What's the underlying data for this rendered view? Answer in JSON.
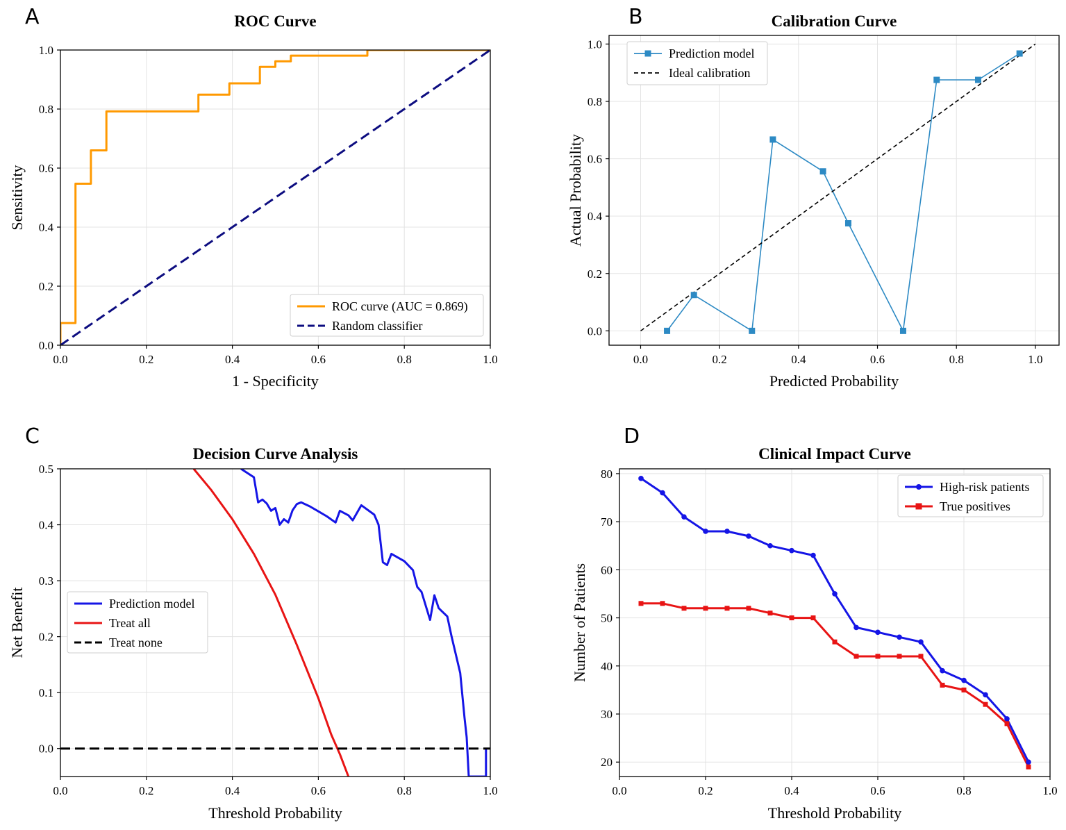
{
  "chart_data": [
    {
      "id": "A",
      "panel_label": "A",
      "type": "line",
      "title": "ROC Curve",
      "xlabel": "1 - Specificity",
      "ylabel": "Sensitivity",
      "xlim": [
        0,
        1
      ],
      "ylim": [
        0,
        1
      ],
      "xticks": [
        0,
        0.2,
        0.4,
        0.6,
        0.8,
        1.0
      ],
      "yticks": [
        0,
        0.2,
        0.4,
        0.6,
        0.8,
        1.0
      ],
      "tick_decimals": 1,
      "grid": true,
      "legend_position": "lower-right",
      "series": [
        {
          "name": "ROC curve (AUC = 0.869)",
          "color": "#ff9900",
          "dash": "solid",
          "marker": "none",
          "x": [
            0,
            0,
            0.035,
            0.035,
            0.071,
            0.071,
            0.107,
            0.107,
            0.321,
            0.321,
            0.393,
            0.393,
            0.464,
            0.464,
            0.5,
            0.5,
            0.536,
            0.536,
            0.714,
            0.714,
            1.0
          ],
          "y": [
            0,
            0.075,
            0.075,
            0.547,
            0.547,
            0.66,
            0.66,
            0.792,
            0.792,
            0.849,
            0.849,
            0.887,
            0.887,
            0.943,
            0.943,
            0.962,
            0.962,
            0.981,
            0.981,
            1.0,
            1.0
          ]
        },
        {
          "name": "Random classifier",
          "color": "#0d0d80",
          "dash": "dashed",
          "marker": "none",
          "x": [
            0,
            1
          ],
          "y": [
            0,
            1
          ]
        }
      ]
    },
    {
      "id": "B",
      "panel_label": "B",
      "type": "line",
      "title": "Calibration Curve",
      "xlabel": "Predicted Probability",
      "ylabel": "Actual Probability",
      "xlim": [
        -0.08,
        1.06
      ],
      "ylim": [
        -0.05,
        1.03
      ],
      "xticks": [
        0,
        0.2,
        0.4,
        0.6,
        0.8,
        1.0
      ],
      "yticks": [
        0,
        0.2,
        0.4,
        0.6,
        0.8,
        1.0
      ],
      "tick_decimals": 1,
      "grid": true,
      "legend_position": "upper-left",
      "series": [
        {
          "name": "Prediction model",
          "color": "#2d8ac4",
          "dash": "solid",
          "marker": "square",
          "x": [
            0.067,
            0.135,
            0.282,
            0.335,
            0.462,
            0.526,
            0.665,
            0.75,
            0.855,
            0.96
          ],
          "y": [
            0.0,
            0.125,
            0.0,
            0.667,
            0.556,
            0.375,
            0.0,
            0.875,
            0.875,
            0.967
          ]
        },
        {
          "name": "Ideal calibration",
          "color": "#000000",
          "dash": "dashed-fine",
          "marker": "none",
          "x": [
            0,
            1
          ],
          "y": [
            0,
            1
          ]
        }
      ]
    },
    {
      "id": "C",
      "panel_label": "C",
      "type": "line",
      "title": "Decision Curve Analysis",
      "xlabel": "Threshold Probability",
      "ylabel": "Net Benefit",
      "xlim": [
        0,
        1
      ],
      "ylim": [
        -0.05,
        0.5
      ],
      "xticks": [
        0,
        0.2,
        0.4,
        0.6,
        0.8,
        1.0
      ],
      "yticks": [
        0,
        0.1,
        0.2,
        0.3,
        0.4,
        0.5
      ],
      "tick_decimals": 1,
      "grid": true,
      "legend_position": "center-left",
      "series": [
        {
          "name": "Prediction model",
          "color": "#1515e6",
          "dash": "solid",
          "marker": "none",
          "x": [
            0.42,
            0.45,
            0.46,
            0.47,
            0.48,
            0.49,
            0.5,
            0.51,
            0.52,
            0.53,
            0.54,
            0.55,
            0.56,
            0.58,
            0.6,
            0.62,
            0.64,
            0.65,
            0.67,
            0.68,
            0.7,
            0.73,
            0.74,
            0.75,
            0.76,
            0.77,
            0.8,
            0.82,
            0.83,
            0.84,
            0.86,
            0.87,
            0.88,
            0.9,
            0.91,
            0.93,
            0.94,
            0.945,
            0.95,
            0.955,
            0.99,
            0.99
          ],
          "y": [
            0.5,
            0.485,
            0.44,
            0.445,
            0.438,
            0.425,
            0.43,
            0.4,
            0.41,
            0.404,
            0.426,
            0.437,
            0.44,
            0.433,
            0.424,
            0.415,
            0.404,
            0.425,
            0.417,
            0.408,
            0.435,
            0.418,
            0.4,
            0.333,
            0.328,
            0.348,
            0.335,
            0.319,
            0.289,
            0.28,
            0.23,
            0.274,
            0.251,
            0.236,
            0.2,
            0.135,
            0.055,
            0.02,
            -0.05,
            -0.05,
            -0.05,
            0.0
          ]
        },
        {
          "name": "Treat all",
          "color": "#e81414",
          "dash": "solid",
          "marker": "none",
          "x": [
            0.31,
            0.35,
            0.4,
            0.45,
            0.5,
            0.55,
            0.6,
            0.63,
            0.65,
            0.67
          ],
          "y": [
            0.5,
            0.463,
            0.41,
            0.348,
            0.275,
            0.185,
            0.09,
            0.025,
            -0.01,
            -0.05
          ]
        },
        {
          "name": "Treat none",
          "color": "#000000",
          "dash": "dashed",
          "marker": "none",
          "x": [
            0,
            1
          ],
          "y": [
            0,
            0
          ]
        }
      ]
    },
    {
      "id": "D",
      "panel_label": "D",
      "type": "line",
      "title": "Clinical Impact Curve",
      "xlabel": "Threshold Probability",
      "ylabel": "Number of Patients",
      "xlim": [
        0,
        1
      ],
      "ylim": [
        17,
        81
      ],
      "xticks": [
        0,
        0.2,
        0.4,
        0.6,
        0.8,
        1.0
      ],
      "yticks": [
        20,
        30,
        40,
        50,
        60,
        70,
        80
      ],
      "tick_decimals_x": 1,
      "tick_decimals_y": 0,
      "grid": true,
      "legend_position": "upper-right",
      "series": [
        {
          "name": "High-risk patients",
          "color": "#1515e6",
          "dash": "solid",
          "marker": "circle",
          "x": [
            0.05,
            0.1,
            0.15,
            0.2,
            0.25,
            0.3,
            0.35,
            0.4,
            0.45,
            0.5,
            0.55,
            0.6,
            0.65,
            0.7,
            0.75,
            0.8,
            0.85,
            0.9,
            0.95
          ],
          "y": [
            79,
            76,
            71,
            68,
            68,
            67,
            65,
            64,
            63,
            55,
            48,
            47,
            46,
            45,
            39,
            37,
            34,
            29,
            20
          ]
        },
        {
          "name": "True positives",
          "color": "#e81414",
          "dash": "solid",
          "marker": "square",
          "x": [
            0.05,
            0.1,
            0.15,
            0.2,
            0.25,
            0.3,
            0.35,
            0.4,
            0.45,
            0.5,
            0.55,
            0.6,
            0.65,
            0.7,
            0.75,
            0.8,
            0.85,
            0.9,
            0.95
          ],
          "y": [
            53,
            53,
            52,
            52,
            52,
            52,
            51,
            50,
            50,
            45,
            42,
            42,
            42,
            42,
            36,
            35,
            32,
            28,
            19
          ]
        }
      ]
    }
  ]
}
